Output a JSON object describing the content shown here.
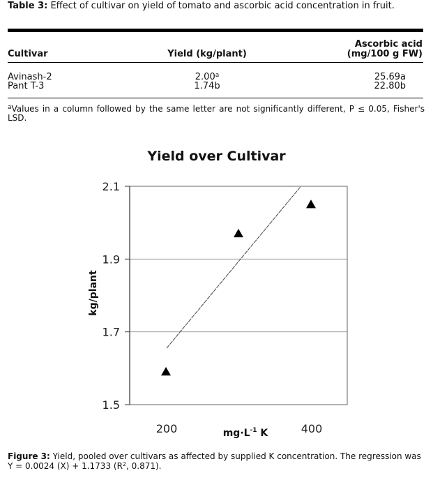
{
  "table": {
    "label": "Table 3:",
    "title": "Effect of cultivar on yield of tomato and ascorbic acid concentration in fruit.",
    "headers": {
      "cultivar": "Cultivar",
      "yield": "Yield (kg/plant)",
      "ascorbic_line1": "Ascorbic acid",
      "ascorbic_line2": "(mg/100 g FW)"
    },
    "rows": [
      {
        "cultivar": "Avinash-2",
        "yield": "2.00a",
        "yield_sup": "a",
        "ascorbic": "25.69a"
      },
      {
        "cultivar": "Pant T-3",
        "yield": "1.74b",
        "yield_sup": "",
        "ascorbic": "22.80b"
      }
    ],
    "footnote_mark": "a",
    "footnote": "Values in a column followed by the same letter are not significantly different, P ≤ 0.05, Fisher's LSD."
  },
  "figure": {
    "label": "Figure 3:",
    "caption_pre": "Yield, pooled over cultivars as affected by supplied K concentration. The regression was Y = 0.0024 (X) + 1.1733 (R",
    "caption_sup": "2",
    "caption_post": ", 0.871)."
  },
  "chart_data": {
    "type": "scatter",
    "title": "Yield over Cultivar",
    "xlabel": "mg·L",
    "xlabel_sup": "-1",
    "xlabel_suffix": " K",
    "ylabel": "kg/plant",
    "xlim": [
      150,
      450
    ],
    "ylim": [
      1.5,
      2.1
    ],
    "x_ticks": [
      200,
      400
    ],
    "y_ticks": [
      "2.1",
      "1.9",
      "1.7",
      "1.5"
    ],
    "grid": true,
    "series": [
      {
        "x": [
          200,
          300,
          400
        ],
        "y": [
          1.59,
          1.97,
          2.05
        ],
        "marker": "triangle"
      }
    ],
    "regression": {
      "slope": 0.0024,
      "intercept": 1.1733,
      "x_range": [
        200,
        400
      ],
      "style": "dashed"
    }
  }
}
